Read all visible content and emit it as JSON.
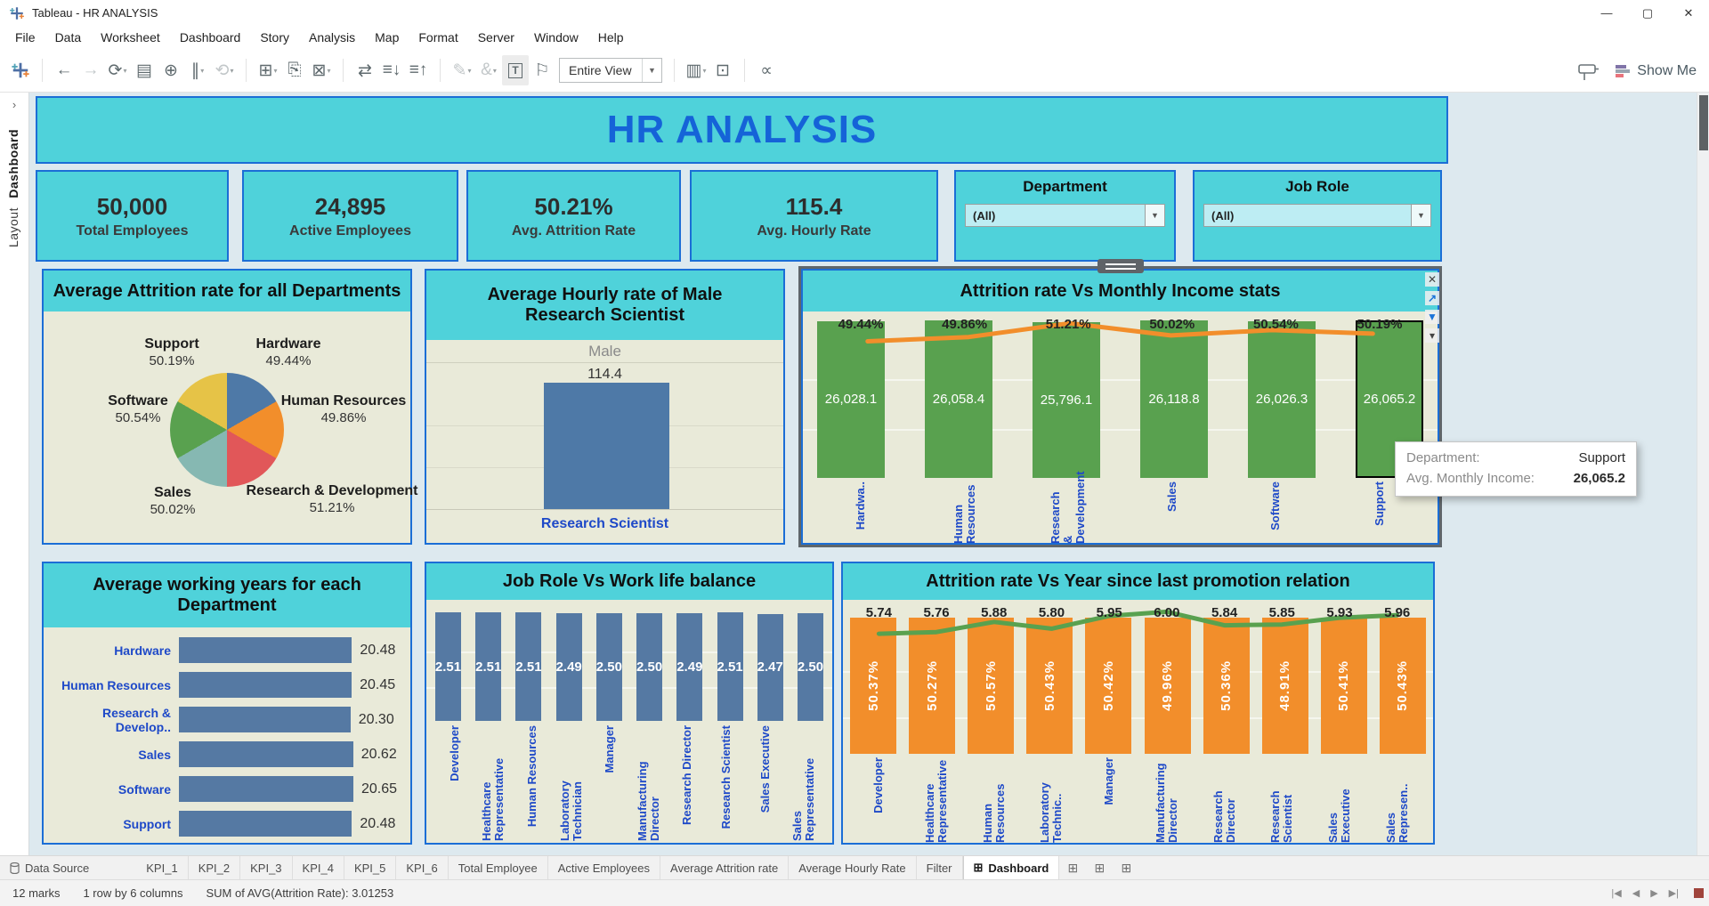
{
  "window": {
    "title": "Tableau - HR ANALYSIS",
    "controls": [
      {
        "name": "minimize-icon",
        "glyph": "—"
      },
      {
        "name": "maximize-icon",
        "glyph": "▢"
      },
      {
        "name": "close-icon",
        "glyph": "✕"
      }
    ]
  },
  "menu": {
    "items": [
      "File",
      "Data",
      "Worksheet",
      "Dashboard",
      "Story",
      "Analysis",
      "Map",
      "Format",
      "Server",
      "Window",
      "Help"
    ]
  },
  "toolbar": {
    "items": [
      {
        "type": "logo",
        "name": "tableau-logo-icon"
      },
      {
        "type": "sep"
      },
      {
        "type": "icon",
        "name": "back-icon",
        "glyph": "←"
      },
      {
        "type": "icon",
        "name": "forward-icon",
        "glyph": "→",
        "disabled": true
      },
      {
        "type": "icon",
        "name": "replay-icon",
        "glyph": "⟳",
        "caret": true
      },
      {
        "type": "icon",
        "name": "save-icon",
        "glyph": "▤"
      },
      {
        "type": "icon",
        "name": "new-data-source-icon",
        "glyph": "⊕"
      },
      {
        "type": "icon",
        "name": "pause-auto-updates-icon",
        "glyph": "∥",
        "caret": true
      },
      {
        "type": "icon",
        "name": "run-update-icon",
        "glyph": "⟲",
        "caret": true,
        "disabled": true
      },
      {
        "type": "sep"
      },
      {
        "type": "icon",
        "name": "new-worksheet-icon",
        "glyph": "⊞",
        "caret": true
      },
      {
        "type": "icon",
        "name": "duplicate-icon",
        "glyph": "⎘"
      },
      {
        "type": "icon",
        "name": "clear-sheet-icon",
        "glyph": "⊠",
        "caret": true
      },
      {
        "type": "sep"
      },
      {
        "type": "icon",
        "name": "swap-rows-columns-icon",
        "glyph": "⇄"
      },
      {
        "type": "icon",
        "name": "sort-ascending-icon",
        "glyph": "≡↓"
      },
      {
        "type": "icon",
        "name": "sort-descending-icon",
        "glyph": "≡↑"
      },
      {
        "type": "sep"
      },
      {
        "type": "icon",
        "name": "highlight-icon",
        "glyph": "✎",
        "caret": true,
        "disabled": true
      },
      {
        "type": "icon",
        "name": "format-link-icon",
        "glyph": "&",
        "caret": true,
        "disabled": true
      },
      {
        "type": "icon",
        "name": "show-mark-labels-icon",
        "glyph": "T",
        "boxed": true,
        "active": true
      },
      {
        "type": "icon",
        "name": "fix-axes-icon",
        "glyph": "⚐"
      },
      {
        "type": "fit"
      },
      {
        "type": "sep"
      },
      {
        "type": "icon",
        "name": "show-cards-icon",
        "glyph": "▥",
        "caret": true
      },
      {
        "type": "icon",
        "name": "presentation-mode-icon",
        "glyph": "⊡"
      },
      {
        "type": "sep"
      },
      {
        "type": "icon",
        "name": "share-icon",
        "glyph": "∝"
      }
    ],
    "fit_value": "Entire View",
    "tooltip_button": "signpost",
    "show_me_label": "Show Me"
  },
  "sidebar": {
    "collapse_icon": "›",
    "tabs": [
      {
        "label": "Dashboard",
        "active": true
      },
      {
        "label": "Layout",
        "active": false
      }
    ]
  },
  "dashboard": {
    "title": "HR ANALYSIS",
    "kpis": [
      {
        "value": "50,000",
        "label": "Total Employees"
      },
      {
        "value": "24,895",
        "label": "Active Employees"
      },
      {
        "value": "50.21%",
        "label": "Avg. Attrition Rate"
      },
      {
        "value": "115.4",
        "label": "Avg. Hourly Rate"
      }
    ],
    "filters": [
      {
        "title": "Department",
        "value": "(All)"
      },
      {
        "title": "Job Role",
        "value": "(All)"
      }
    ]
  },
  "chart_data": [
    {
      "id": "attrition_by_department",
      "type": "pie",
      "title": "Average Attrition rate for all Departments",
      "slices": [
        {
          "label": "Hardware",
          "value": "49.44%",
          "color": "#4e79a7"
        },
        {
          "label": "Human Resources",
          "value": "49.86%",
          "color": "#f28e2b"
        },
        {
          "label": "Research & Development",
          "value": "51.21%",
          "color": "#e15759"
        },
        {
          "label": "Sales",
          "value": "50.02%",
          "color": "#86b8b2"
        },
        {
          "label": "Software",
          "value": "50.54%",
          "color": "#59a14f"
        },
        {
          "label": "Support",
          "value": "50.19%",
          "color": "#e6c347"
        }
      ]
    },
    {
      "id": "male_rs_hourly",
      "type": "bar",
      "title": "Average Hourly rate of Male Research Scientist",
      "column_header": "Male",
      "value": 114.4,
      "value_label": "114.4",
      "category": "Research Scientist",
      "bar_color": "#4e79a7"
    },
    {
      "id": "income_stats",
      "type": "bar_line",
      "title": "Attrition rate Vs Monthly Income stats",
      "categories": [
        "Hardwa..",
        "Human Resources",
        "Research & Development",
        "Sales",
        "Software",
        "Support"
      ],
      "bar_values": [
        26028.1,
        26058.4,
        25796.1,
        26118.8,
        26026.3,
        26065.2
      ],
      "bar_labels": [
        "26,028.1",
        "26,058.4",
        "25,796.1",
        "26,118.8",
        "26,026.3",
        "26,065.2"
      ],
      "line_values": [
        49.44,
        49.86,
        51.21,
        50.02,
        50.54,
        50.19
      ],
      "line_labels": [
        "49.44%",
        "49.86%",
        "51.21%",
        "50.02%",
        "50.54%",
        "50.19%"
      ],
      "bar_color": "#59a14f",
      "line_color": "#f28e2b",
      "highlighted_category": "Support"
    },
    {
      "id": "working_years",
      "type": "hbar",
      "title": "Average working years for each Department",
      "categories": [
        "Hardware",
        "Human Resources",
        "Research & Develop..",
        "Sales",
        "Software",
        "Support"
      ],
      "values": [
        20.48,
        20.45,
        20.3,
        20.62,
        20.65,
        20.48
      ],
      "value_labels": [
        "20.48",
        "20.45",
        "20.30",
        "20.62",
        "20.65",
        "20.48"
      ],
      "bar_color": "#5579a3"
    },
    {
      "id": "work_life_balance",
      "type": "bar",
      "title": "Job Role Vs Work life balance",
      "categories": [
        "Developer",
        "Healthcare Representative",
        "Human Resources",
        "Laboratory Technician",
        "Manager",
        "Manufacturing Director",
        "Research Director",
        "Research Scientist",
        "Sales Executive",
        "Sales Representative"
      ],
      "values": [
        2.51,
        2.51,
        2.51,
        2.49,
        2.5,
        2.5,
        2.49,
        2.51,
        2.47,
        2.5
      ],
      "value_labels": [
        "2.51",
        "2.51",
        "2.51",
        "2.49",
        "2.50",
        "2.50",
        "2.49",
        "2.51",
        "2.47",
        "2.50"
      ],
      "bar_color": "#5579a3"
    },
    {
      "id": "promotion_relation",
      "type": "bar_line",
      "title": "Attrition rate Vs Year since last promotion relation",
      "categories": [
        "Developer",
        "Healthcare Representative",
        "Human Resources",
        "Laboratory Technic..",
        "Manager",
        "Manufacturing Director",
        "Research Director",
        "Research Scientist",
        "Sales Executive",
        "Sales Represen.."
      ],
      "bar_labels": [
        "50.37%",
        "50.27%",
        "50.57%",
        "50.43%",
        "50.42%",
        "49.96%",
        "50.36%",
        "48.91%",
        "50.41%",
        "50.43%"
      ],
      "line_values": [
        5.74,
        5.76,
        5.88,
        5.8,
        5.95,
        6.0,
        5.84,
        5.85,
        5.93,
        5.96
      ],
      "line_labels": [
        "5.74",
        "5.76",
        "5.88",
        "5.80",
        "5.95",
        "6.00",
        "5.84",
        "5.85",
        "5.93",
        "5.96"
      ],
      "bar_color": "#f28e2b",
      "line_color": "#59a14f"
    }
  ],
  "zone_controls": [
    {
      "name": "remove-zone-icon",
      "glyph": "✕"
    },
    {
      "name": "go-to-sheet-icon",
      "glyph": "↗",
      "blue": true
    },
    {
      "name": "use-as-filter-icon",
      "glyph": "▼",
      "blue": true
    },
    {
      "name": "more-options-icon",
      "glyph": "▾"
    }
  ],
  "tooltip": {
    "rows": [
      {
        "label": "Department:",
        "value": "Support"
      },
      {
        "label": "Avg. Monthly Income:",
        "value": "26,065.2"
      }
    ]
  },
  "sheet_tabs": {
    "tabs": [
      "Data Source",
      "KPI_1",
      "KPI_2",
      "KPI_3",
      "KPI_4",
      "KPI_5",
      "KPI_6",
      "Total Employee",
      "Active Employees",
      "Average Attrition rate",
      "Average Hourly Rate",
      "Filter",
      "Dashboard"
    ],
    "active": "Dashboard",
    "new_buttons": [
      {
        "name": "new-worksheet-tab-icon",
        "glyph": "⊞"
      },
      {
        "name": "new-dashboard-tab-icon",
        "glyph": "⊞"
      },
      {
        "name": "new-story-tab-icon",
        "glyph": "⊞"
      }
    ]
  },
  "status_bar": {
    "marks": "12 marks",
    "rows_cols": "1 row by 6 columns",
    "aggregate": "SUM of AVG(Attrition Rate): 3.01253",
    "pager": [
      {
        "name": "first-sheet-icon",
        "glyph": "|◀"
      },
      {
        "name": "previous-sheet-icon",
        "glyph": "◀"
      },
      {
        "name": "next-sheet-icon",
        "glyph": "▶"
      },
      {
        "name": "last-sheet-icon",
        "glyph": "▶|"
      }
    ]
  }
}
